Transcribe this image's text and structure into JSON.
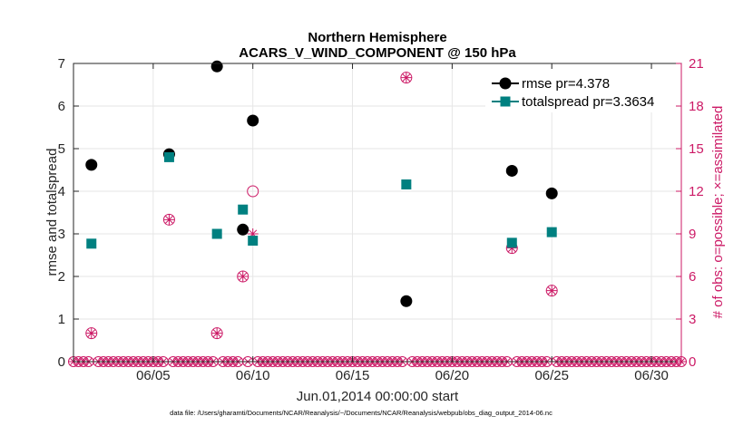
{
  "chart_data": {
    "type": "scatter",
    "title": "Northern Hemisphere",
    "subtitle": "ACARS_V_WIND_COMPONENT @ 150 hPa",
    "xlabel": "Jun.01,2014 00:00:00 start",
    "ylabel_left": "rmse and totalspread",
    "ylabel_right": "# of obs: o=possible; ×=assimilated",
    "footnote": "data file: /Users/gharamti/Documents/NCAR/Reanalysis/~/Documents/NCAR/Reanalysis/webpub/obs_diag_output_2014-06.nc",
    "xlim": [
      1,
      31.5
    ],
    "ylim_left": [
      0,
      7
    ],
    "ylim_right": [
      0,
      21
    ],
    "x_ticks": [
      5,
      10,
      15,
      20,
      25,
      30
    ],
    "x_tick_labels": [
      "06/05",
      "06/10",
      "06/15",
      "06/20",
      "06/25",
      "06/30"
    ],
    "y_ticks_left": [
      0,
      1,
      2,
      3,
      4,
      5,
      6,
      7
    ],
    "y_ticks_left_labels": [
      "0",
      "1",
      "2",
      "3",
      "4",
      "5",
      "6",
      "7"
    ],
    "y_ticks_right": [
      0,
      3,
      6,
      9,
      12,
      15,
      18,
      21
    ],
    "y_ticks_right_labels": [
      "0",
      "3",
      "6",
      "9",
      "12",
      "15",
      "18",
      "21"
    ],
    "grid": true,
    "legend_position": "top-right",
    "series": [
      {
        "name": "rmse pr=4.378",
        "axis": "left",
        "marker": "filled-circle",
        "color": "#000000",
        "points": [
          [
            1.9,
            4.62
          ],
          [
            5.8,
            4.87
          ],
          [
            8.2,
            6.93
          ],
          [
            9.5,
            3.1
          ],
          [
            10.0,
            5.66
          ],
          [
            17.7,
            1.42
          ],
          [
            23.0,
            4.48
          ],
          [
            25.0,
            3.95
          ]
        ]
      },
      {
        "name": "totalspread pr=3.3634",
        "axis": "left",
        "marker": "filled-square",
        "color": "#008080",
        "points": [
          [
            1.9,
            2.77
          ],
          [
            5.8,
            4.8
          ],
          [
            8.2,
            3.0
          ],
          [
            9.5,
            3.57
          ],
          [
            10.0,
            2.84
          ],
          [
            17.7,
            4.16
          ],
          [
            23.0,
            2.79
          ],
          [
            25.0,
            3.04
          ]
        ]
      },
      {
        "name": "obs possible",
        "axis": "right",
        "marker": "open-circle",
        "color": "#cc1a66",
        "points": [
          [
            1.9,
            2
          ],
          [
            5.8,
            10
          ],
          [
            8.2,
            2
          ],
          [
            9.5,
            6
          ],
          [
            10.0,
            12
          ],
          [
            17.7,
            20
          ],
          [
            23.0,
            8
          ],
          [
            25.0,
            5
          ]
        ]
      },
      {
        "name": "obs assimilated",
        "axis": "right",
        "marker": "asterisk",
        "color": "#cc1a66",
        "points": [
          [
            1.9,
            2
          ],
          [
            5.8,
            10
          ],
          [
            8.2,
            2
          ],
          [
            9.5,
            6
          ],
          [
            10.0,
            9
          ],
          [
            17.7,
            20
          ],
          [
            23.0,
            8
          ],
          [
            25.0,
            5
          ]
        ]
      }
    ],
    "zero_obs_start": 1.0,
    "zero_obs_end": 31.5,
    "zero_obs_step": 0.25,
    "colors": {
      "rmse": "#000000",
      "spread": "#008080",
      "obs": "#cc1a66",
      "grid": "#e6e6e6",
      "axis": "#262626"
    }
  }
}
